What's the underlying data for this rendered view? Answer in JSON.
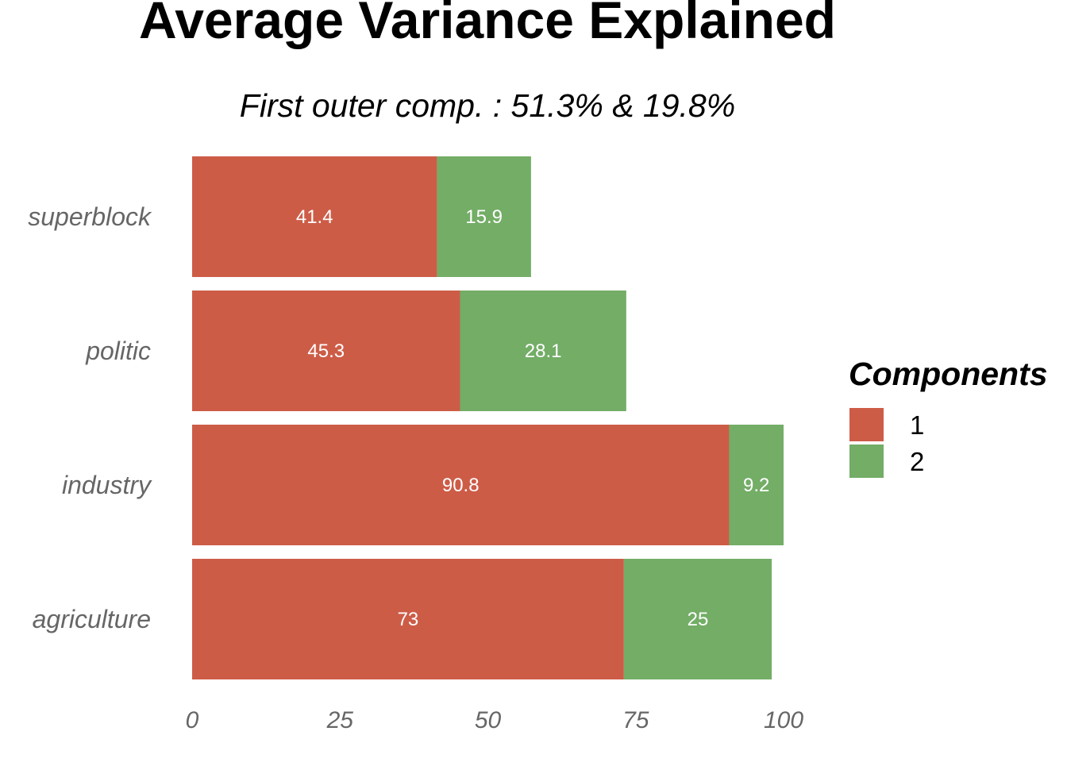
{
  "chart_data": {
    "type": "bar",
    "orientation": "horizontal",
    "stacked": true,
    "title": "Average Variance Explained",
    "subtitle": "First outer comp. : 51.3% & 19.8%",
    "categories": [
      "superblock",
      "politic",
      "industry",
      "agriculture"
    ],
    "series": [
      {
        "name": "1",
        "color": "#CD5C47",
        "values": [
          41.4,
          45.3,
          90.8,
          73
        ]
      },
      {
        "name": "2",
        "color": "#73AD66",
        "values": [
          15.9,
          28.1,
          9.2,
          25
        ]
      }
    ],
    "data_labels": [
      [
        "41.4",
        "45.3",
        "90.8",
        "73"
      ],
      [
        "15.9",
        "28.1",
        "9.2",
        "25"
      ]
    ],
    "xlim": [
      0,
      100
    ],
    "xticks": [
      "0",
      "25",
      "50",
      "75",
      "100"
    ],
    "xlabel": "",
    "ylabel": "",
    "grid": false,
    "legend": {
      "title": "Components",
      "placement": "right",
      "entries": [
        "1",
        "2"
      ]
    }
  }
}
